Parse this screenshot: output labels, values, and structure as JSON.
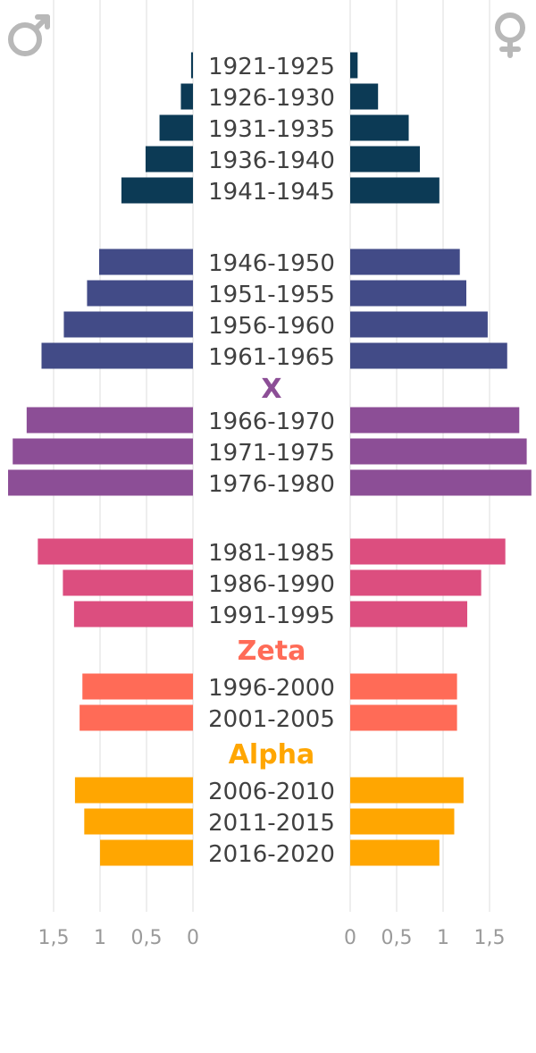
{
  "chart_data": {
    "type": "bar",
    "chart_kind": "population-pyramid",
    "categories": [
      "1921-1925",
      "1926-1930",
      "1931-1935",
      "1936-1940",
      "1941-1945",
      "1946-1950",
      "1951-1955",
      "1956-1960",
      "1961-1965",
      "1966-1970",
      "1971-1975",
      "1976-1980",
      "1981-1985",
      "1986-1990",
      "1991-1995",
      "1996-2000",
      "2001-2005",
      "2006-2010",
      "2011-2015",
      "2016-2020"
    ],
    "series": [
      {
        "side": "left",
        "symbol": "male-symbol-icon",
        "values": [
          0.02,
          0.13,
          0.36,
          0.51,
          0.77,
          1.01,
          1.14,
          1.39,
          1.63,
          1.79,
          1.94,
          1.99,
          1.67,
          1.4,
          1.28,
          1.19,
          1.22,
          1.27,
          1.17,
          1.0
        ]
      },
      {
        "side": "right",
        "symbol": "female-symbol-icon",
        "values": [
          0.08,
          0.3,
          0.63,
          0.75,
          0.96,
          1.18,
          1.25,
          1.48,
          1.69,
          1.82,
          1.9,
          1.95,
          1.67,
          1.41,
          1.26,
          1.15,
          1.15,
          1.22,
          1.12,
          0.96
        ]
      }
    ],
    "generations": [
      {
        "label": "",
        "color": "#0c3a55",
        "categories": [
          "1921-1925",
          "1926-1930",
          "1931-1935",
          "1936-1940",
          "1941-1945"
        ]
      },
      {
        "label": "",
        "color": "#424b87",
        "categories": [
          "1946-1950",
          "1951-1955",
          "1956-1960",
          "1961-1965"
        ]
      },
      {
        "label": "X",
        "color": "#8c4e96",
        "categories": [
          "1966-1970",
          "1971-1975",
          "1976-1980"
        ]
      },
      {
        "label": "",
        "color": "#dc4e7f",
        "categories": [
          "1981-1985",
          "1986-1990",
          "1991-1995"
        ]
      },
      {
        "label": "Zeta",
        "color": "#ff6b57",
        "categories": [
          "1996-2000",
          "2001-2005"
        ]
      },
      {
        "label": "Alpha",
        "color": "#ffa601",
        "categories": [
          "2006-2010",
          "2011-2015",
          "2016-2020"
        ]
      }
    ],
    "xlim": [
      0,
      2
    ],
    "x_ticks_left": [
      "1,5",
      "1",
      "0,5",
      "0"
    ],
    "x_ticks_right": [
      "0",
      "0,5",
      "1",
      "1,5"
    ],
    "grid": true
  }
}
